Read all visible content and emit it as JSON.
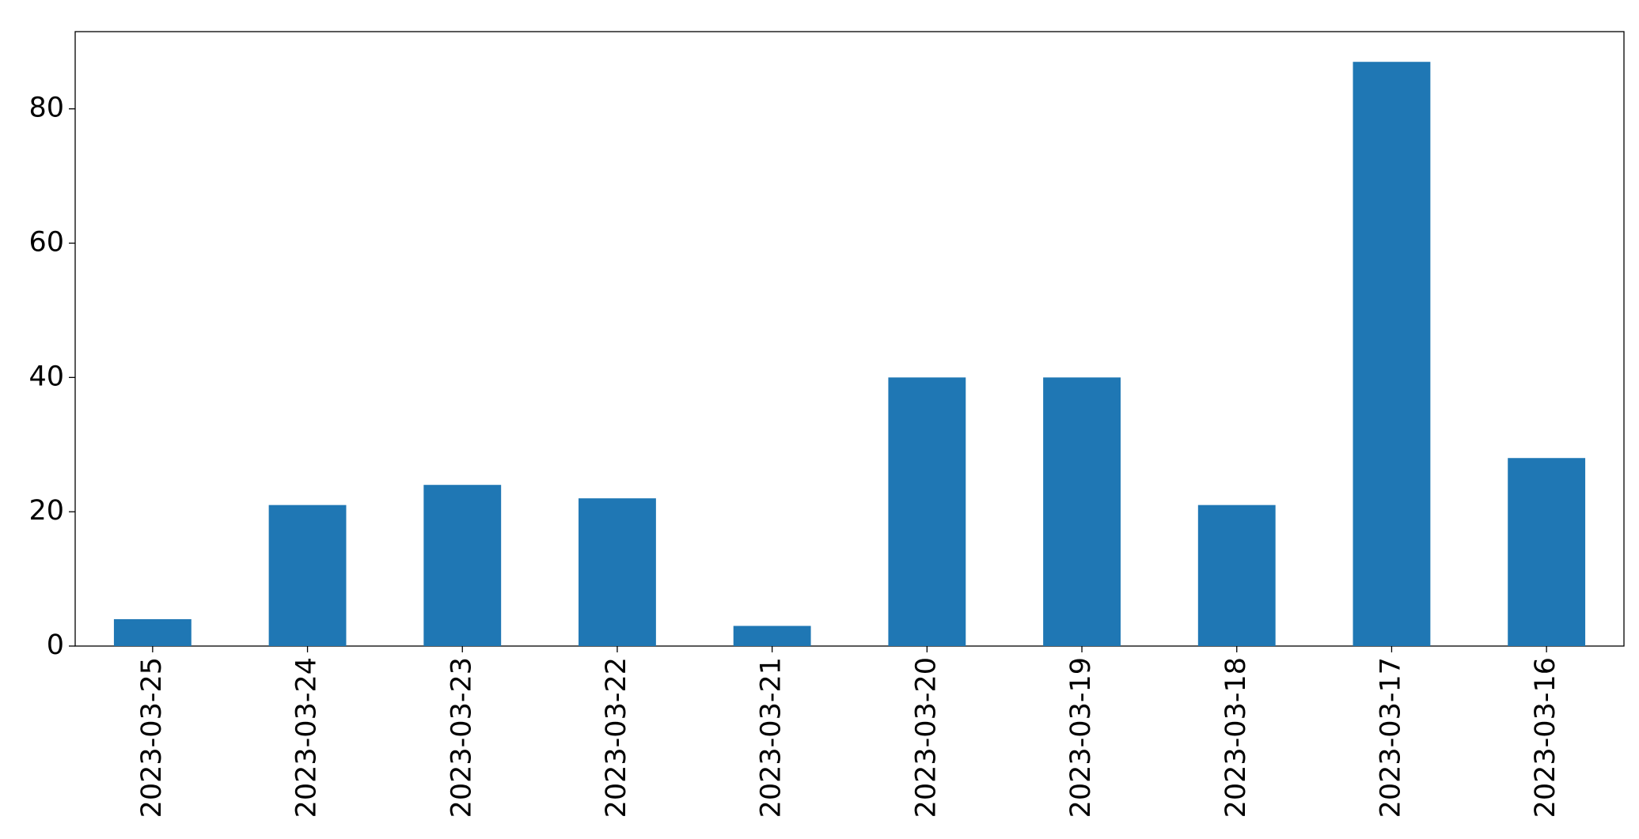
{
  "chart_data": {
    "type": "bar",
    "categories": [
      "2023-03-25",
      "2023-03-24",
      "2023-03-23",
      "2023-03-22",
      "2023-03-21",
      "2023-03-20",
      "2023-03-19",
      "2023-03-18",
      "2023-03-17",
      "2023-03-16"
    ],
    "values": [
      4,
      21,
      24,
      22,
      3,
      40,
      40,
      21,
      87,
      28
    ],
    "color": "#1f77b4",
    "ylim": [
      0,
      91.5
    ],
    "yticks": [
      0,
      20,
      40,
      60,
      80
    ],
    "grid": false
  }
}
